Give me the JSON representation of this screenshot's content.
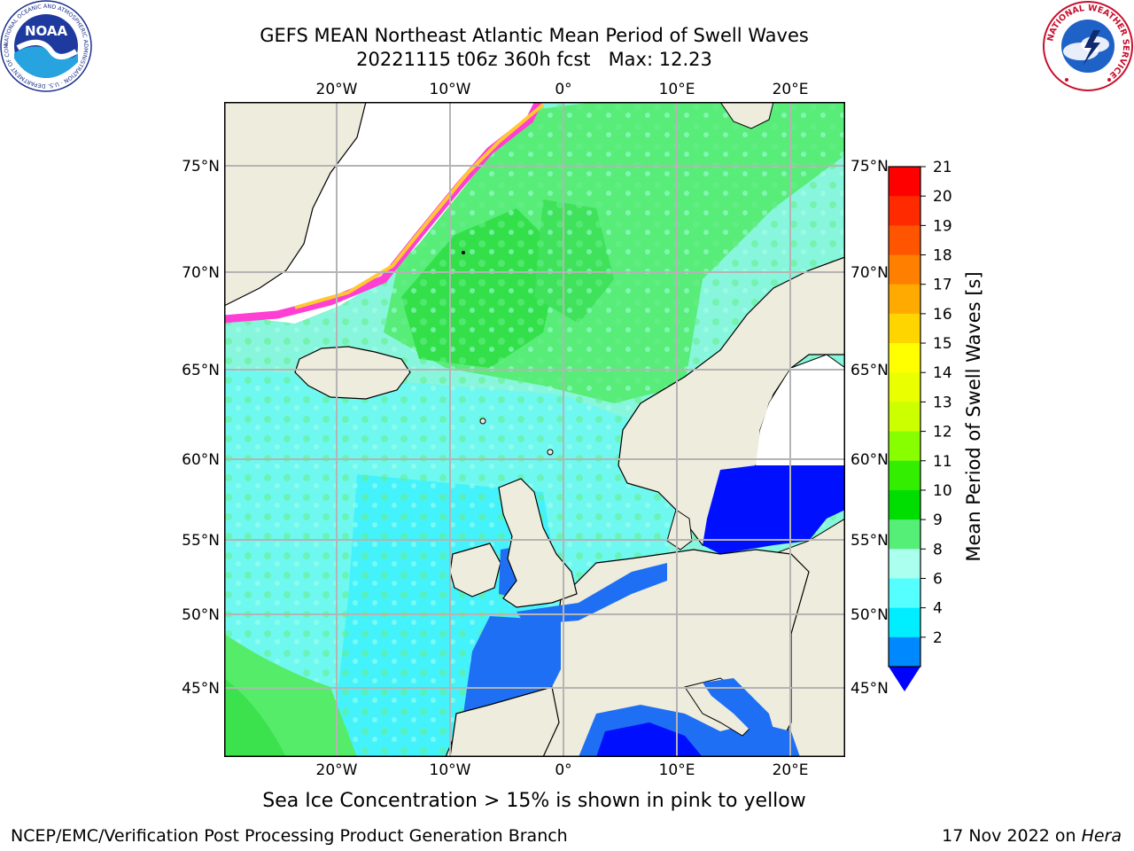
{
  "title": {
    "line1": "GEFS MEAN Northeast Atlantic Mean Period of Swell Waves",
    "line2": "20221115 t06z 360h fcst   Max: 12.23"
  },
  "map": {
    "lon_ticks_top": [
      "20°W",
      "10°W",
      "0°",
      "10°E",
      "20°E"
    ],
    "lon_ticks_bottom": [
      "20°W",
      "10°W",
      "0°",
      "10°E",
      "20°E"
    ],
    "lat_ticks_left": [
      "75°N",
      "70°N",
      "65°N",
      "60°N",
      "55°N",
      "50°N",
      "45°N"
    ],
    "lat_ticks_right": [
      "75°N",
      "70°N",
      "65°N",
      "60°N",
      "55°N",
      "50°N",
      "45°N"
    ],
    "land_color": "#eeecdc",
    "grid_color": "#b4b4b4"
  },
  "colorbar": {
    "label": "Mean Period of Swell Waves [s]",
    "ticks": [
      "21",
      "20",
      "19",
      "18",
      "17",
      "16",
      "15",
      "14",
      "13",
      "12",
      "11",
      "10",
      "9",
      "8",
      "6",
      "4",
      "2"
    ],
    "colors_top_to_bottom": [
      "#ff0000",
      "#ff2a00",
      "#ff5500",
      "#ff8000",
      "#ffaa00",
      "#ffd500",
      "#ffff00",
      "#eaff00",
      "#ccff00",
      "#88ff00",
      "#33ee00",
      "#00dd00",
      "#55ee77",
      "#aaffee",
      "#55ffff",
      "#00eeff",
      "#0088ff"
    ],
    "extend_color": "#0000ff"
  },
  "caption": "Sea Ice Concentration > 15% is shown in pink to yellow",
  "footer": {
    "left": "NCEP/EMC/Verification Post Processing Product Generation Branch",
    "right_prefix": "17 Nov 2022 on ",
    "right_host": "Hera"
  },
  "logos": {
    "noaa": {
      "text": "NOAA",
      "ring_text": "NATIONAL OCEANIC AND ATMOSPHERIC ADMINISTRATION · U.S. DEPARTMENT OF COMMERCE"
    },
    "nws": {
      "ring_text": "NATIONAL WEATHER SERVICE"
    }
  }
}
